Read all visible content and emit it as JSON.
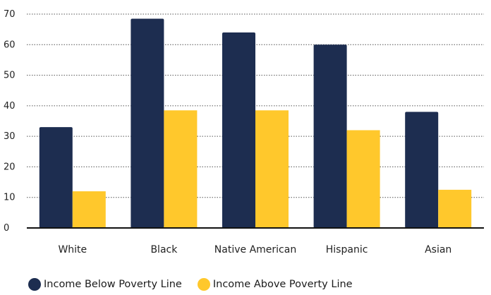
{
  "chart_data": {
    "type": "bar",
    "categories": [
      "White",
      "Black",
      "Native American",
      "Hispanic",
      "Asian"
    ],
    "series": [
      {
        "name": "Income Below Poverty Line",
        "values": [
          33,
          68.5,
          64,
          60,
          38
        ]
      },
      {
        "name": "Income Above Poverty Line",
        "values": [
          12,
          38.5,
          38.5,
          32,
          12.5
        ]
      }
    ],
    "yticks": [
      "0",
      "10",
      "20",
      "30",
      "40",
      "50",
      "60",
      "70"
    ],
    "ylim": [
      0,
      70
    ],
    "grid": "horizontal dotted",
    "legend_position": "bottom-left"
  },
  "colors": {
    "below": "#1d2d50",
    "above": "#ffc82c",
    "grid": "#555555",
    "axis": "#111111"
  }
}
